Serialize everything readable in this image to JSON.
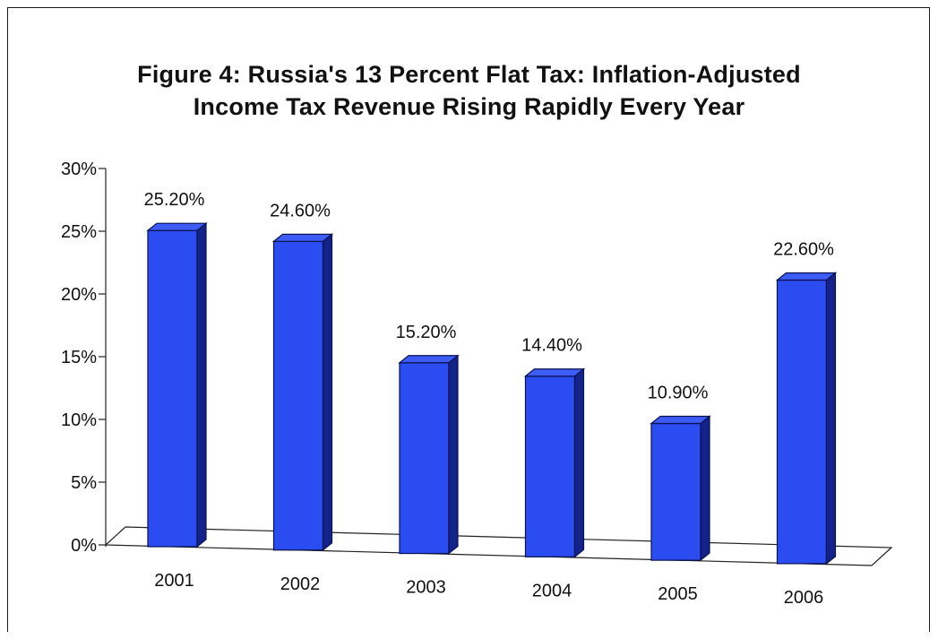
{
  "chart_data": {
    "type": "bar",
    "title": "Figure 4: Russia's 13 Percent Flat Tax: Inflation-Adjusted",
    "subtitle": "Income Tax Revenue Rising Rapidly Every Year",
    "categories": [
      "2001",
      "2002",
      "2003",
      "2004",
      "2005",
      "2006"
    ],
    "values": [
      25.2,
      24.6,
      15.2,
      14.4,
      10.9,
      22.6
    ],
    "data_labels": [
      "25.20%",
      "24.60%",
      "15.20%",
      "14.40%",
      "10.90%",
      "22.60%"
    ],
    "yticks": [
      "0%",
      "5%",
      "10%",
      "15%",
      "20%",
      "25%",
      "30%"
    ],
    "ylim": [
      0,
      30
    ],
    "xlabel": "",
    "ylabel": "",
    "grid": false,
    "legend": "none",
    "colors": {
      "bar_front": "#2b4cf0",
      "bar_side": "#14238a",
      "bar_top": "#3d5cf5",
      "outline": "#0a1250"
    }
  }
}
